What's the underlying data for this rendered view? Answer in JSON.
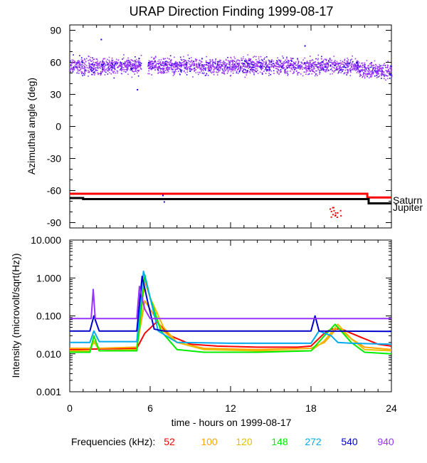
{
  "chart_data": [
    {
      "type": "scatter",
      "title": "URAP Direction Finding  1999-08-17",
      "ylabel": "Azimuthal angle (deg)",
      "xlabel": "",
      "xlim": [
        0,
        24
      ],
      "ylim": [
        -95,
        95
      ],
      "yticks": [
        90,
        60,
        30,
        0,
        -30,
        -60,
        -90
      ],
      "yticklabels": [
        "90",
        "60",
        "30",
        "0",
        "-30",
        "-60",
        "-90"
      ],
      "series": [
        {
          "name": "azimuth",
          "color": "#9933ff",
          "description_value": "scatter centered near 57 deg, 0-24 h, gap 5.3-5.8 h"
        },
        {
          "name": "Saturn",
          "color": "#ff0000",
          "x": [
            0,
            22.2,
            22.2,
            24
          ],
          "y": [
            -63,
            -63,
            -66.5,
            -66.5
          ]
        },
        {
          "name": "Jupiter",
          "color": "#000000",
          "x": [
            0,
            1,
            1,
            22.3,
            22.3,
            24
          ],
          "y": [
            -67,
            -67,
            -68,
            -68,
            -72,
            -72
          ]
        }
      ],
      "annotations": [
        "Saturn",
        "Jupiter"
      ]
    },
    {
      "type": "line",
      "title": "",
      "ylabel": "Intensity (microvolt/sqrt(Hz))",
      "xlabel": "time - hours on 1999-08-17",
      "xlim": [
        0,
        24
      ],
      "yscale": "log",
      "ylim": [
        0.001,
        10
      ],
      "yticks": [
        10,
        1,
        0.1,
        0.01,
        0.001
      ],
      "yticklabels": [
        "10.000",
        "1.000",
        "0.100",
        "0.010",
        "0.001"
      ],
      "xticks": [
        0,
        6,
        12,
        18,
        24
      ],
      "xticklabels": [
        "0",
        "6",
        "12",
        "18",
        "24"
      ],
      "series": [
        {
          "name": "52",
          "color": "#ff0000",
          "x": [
            0,
            5,
            5.6,
            6.5,
            7.5,
            9,
            11,
            14,
            17,
            18,
            19,
            19.5,
            20.3,
            21,
            22,
            23,
            24
          ],
          "y": [
            0.013,
            0.014,
            0.035,
            0.07,
            0.03,
            0.018,
            0.016,
            0.015,
            0.015,
            0.016,
            0.035,
            0.045,
            0.045,
            0.035,
            0.025,
            0.018,
            0.016
          ]
        },
        {
          "name": "100",
          "color": "#ffa500",
          "x": [
            0,
            1.5,
            1.8,
            2.2,
            5,
            5.6,
            6,
            7,
            8,
            10,
            14,
            18,
            19,
            20,
            21,
            22,
            24
          ],
          "y": [
            0.014,
            0.014,
            0.02,
            0.014,
            0.015,
            0.25,
            0.15,
            0.04,
            0.02,
            0.014,
            0.013,
            0.014,
            0.02,
            0.05,
            0.025,
            0.015,
            0.013
          ]
        },
        {
          "name": "120",
          "color": "#e6c000",
          "x": [
            0,
            1.5,
            1.8,
            2.2,
            5,
            5.6,
            6,
            7,
            8,
            10,
            14,
            18,
            19,
            20,
            21,
            22,
            24
          ],
          "y": [
            0.012,
            0.012,
            0.022,
            0.012,
            0.013,
            0.8,
            0.3,
            0.05,
            0.02,
            0.013,
            0.012,
            0.012,
            0.022,
            0.06,
            0.025,
            0.013,
            0.012
          ]
        },
        {
          "name": "148",
          "color": "#00ee00",
          "x": [
            0,
            1.5,
            1.8,
            2.2,
            5,
            5.6,
            6,
            6.8,
            8,
            10,
            14,
            18,
            19,
            19.8,
            21,
            22,
            24
          ],
          "y": [
            0.011,
            0.011,
            0.03,
            0.012,
            0.012,
            1.2,
            0.3,
            0.04,
            0.013,
            0.011,
            0.011,
            0.012,
            0.03,
            0.06,
            0.02,
            0.011,
            0.01
          ]
        },
        {
          "name": "272",
          "color": "#00aaee",
          "x": [
            0,
            1.5,
            1.8,
            2.2,
            5,
            5.5,
            6,
            6.6,
            8,
            12,
            18,
            18.6,
            19.5,
            20,
            21,
            24
          ],
          "y": [
            0.02,
            0.02,
            0.04,
            0.021,
            0.021,
            1.5,
            0.3,
            0.04,
            0.02,
            0.019,
            0.019,
            0.04,
            0.03,
            0.02,
            0.019,
            0.018
          ]
        },
        {
          "name": "540",
          "color": "#0000cc",
          "x": [
            0,
            1.5,
            1.8,
            2.2,
            5,
            5.4,
            5.8,
            6.3,
            7,
            18,
            18.3,
            18.6,
            24
          ],
          "y": [
            0.04,
            0.04,
            0.1,
            0.04,
            0.04,
            1.1,
            0.25,
            0.045,
            0.04,
            0.04,
            0.1,
            0.04,
            0.039
          ]
        },
        {
          "name": "940",
          "color": "#9933ff",
          "x": [
            0,
            1.6,
            1.75,
            1.9,
            5,
            5.2,
            5.6,
            6,
            24
          ],
          "y": [
            0.085,
            0.085,
            0.5,
            0.085,
            0.085,
            0.6,
            0.15,
            0.085,
            0.085
          ]
        }
      ]
    }
  ],
  "legend": {
    "label": "Frequencies (kHz):",
    "items": [
      {
        "text": "52",
        "color": "#ff0000"
      },
      {
        "text": "100",
        "color": "#ffa500"
      },
      {
        "text": "120",
        "color": "#e6c000"
      },
      {
        "text": "148",
        "color": "#00ee00"
      },
      {
        "text": "272",
        "color": "#00aaee"
      },
      {
        "text": "540",
        "color": "#0000cc"
      },
      {
        "text": "940",
        "color": "#9933ff"
      }
    ]
  }
}
